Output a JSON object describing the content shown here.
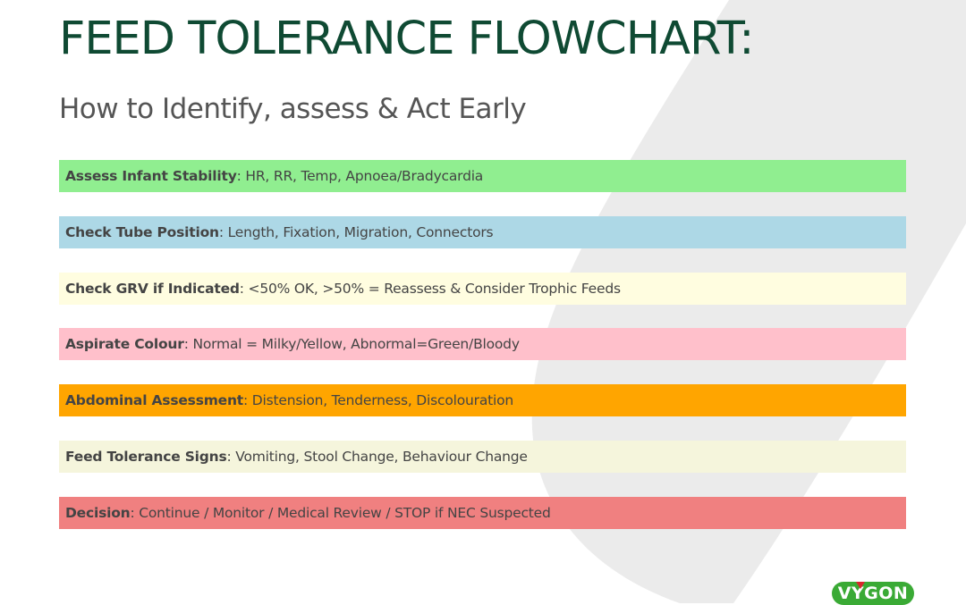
{
  "title": "FEED TOLERANCE FLOWCHART:",
  "subtitle": "How to Identify, assess & Act Early",
  "steps": [
    {
      "label": "Assess Infant Stability",
      "text": ": HR, RR, Temp, Apnoea/Bradycardia",
      "color": "#90ee90"
    },
    {
      "label": "Check Tube Position",
      "text": ": Length, Fixation, Migration, Connectors",
      "color": "#add8e6"
    },
    {
      "label": "Check GRV if Indicated",
      "text": ": <50% OK, >50% = Reassess & Consider Trophic Feeds",
      "color": "#fffde0"
    },
    {
      "label": "Aspirate Colour",
      "text": ": Normal = Milky/Yellow, Abnormal=Green/Bloody",
      "color": "#ffc0cb"
    },
    {
      "label": "Abdominal Assessment",
      "text": ": Distension, Tenderness, Discolouration",
      "color": "#ffa500"
    },
    {
      "label": "Feed Tolerance Signs",
      "text": ": Vomiting, Stool Change, Behaviour Change",
      "color": "#f5f5dc"
    },
    {
      "label": "Decision",
      "text": ": Continue / Monitor / Medical Review / STOP if NEC Suspected",
      "color": "#f08080"
    }
  ],
  "logo": {
    "text": "VYGON",
    "icon": "vygon-logo",
    "color": "#3aaa35",
    "accent": "#d9272e"
  },
  "colors": {
    "title": "#0f4a33",
    "subtitle": "#555555",
    "text": "#444444",
    "background_shape": "#ebebeb"
  }
}
